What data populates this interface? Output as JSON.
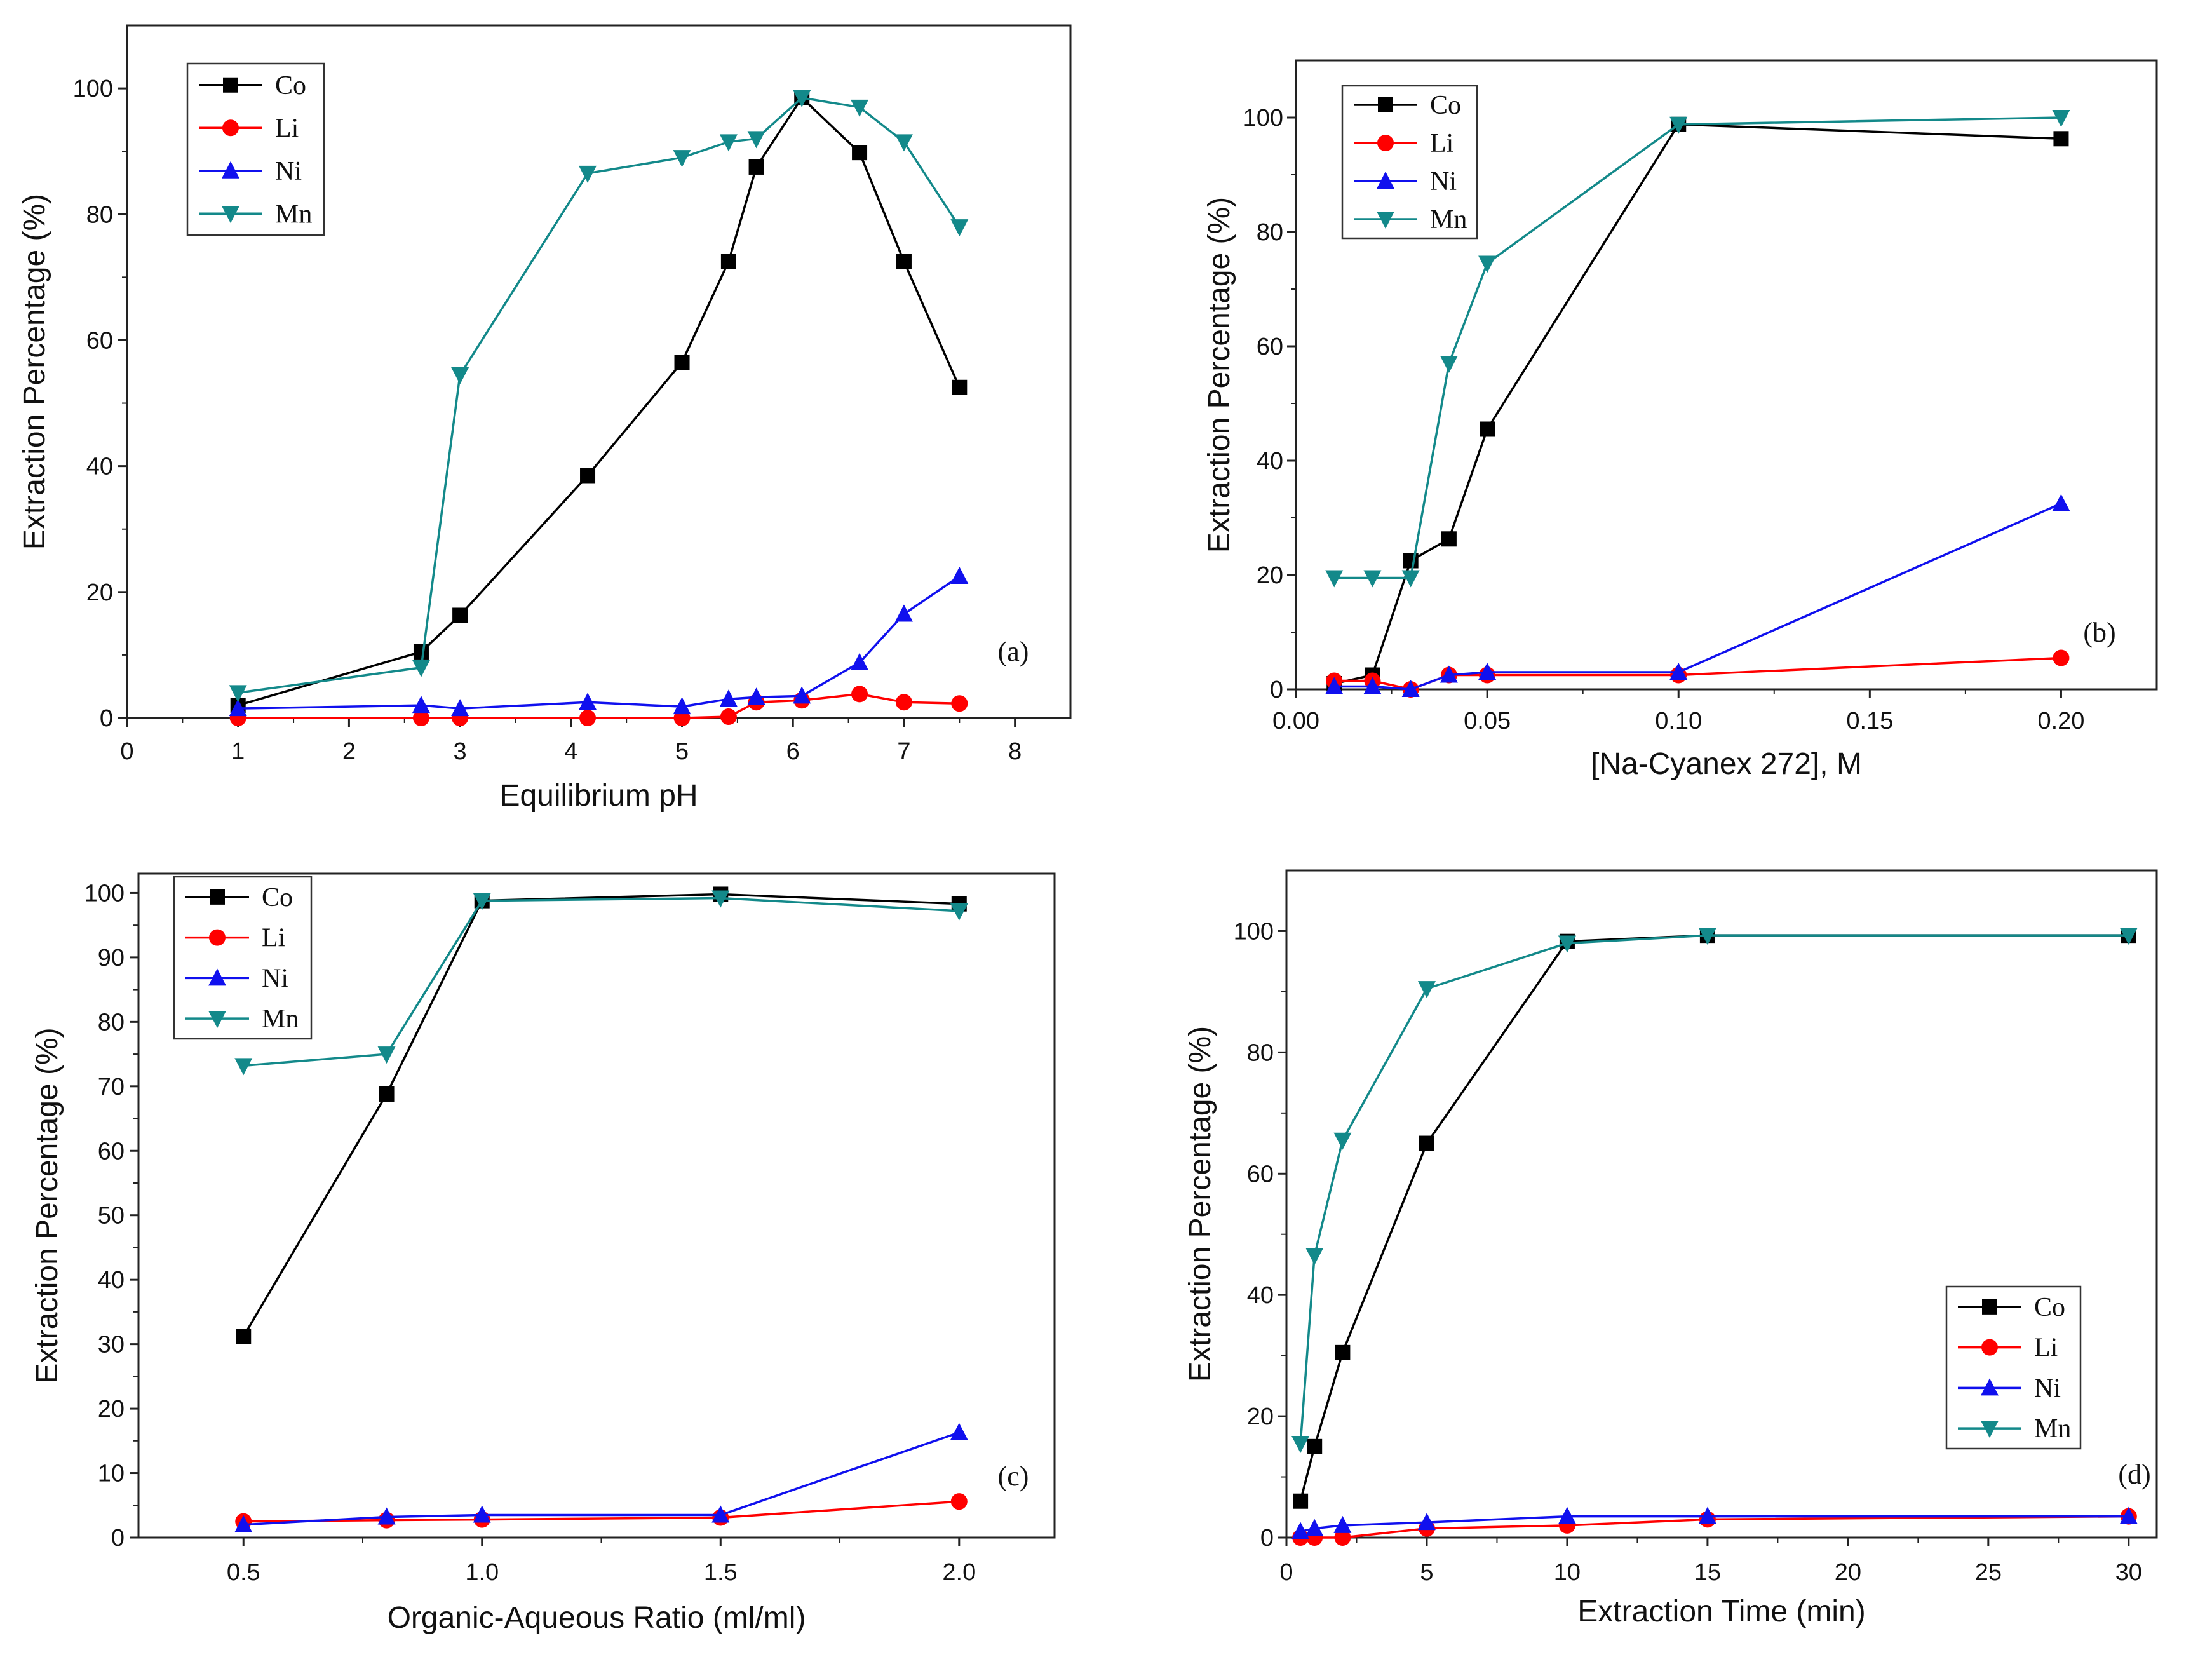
{
  "chart_data": [
    {
      "type": "line",
      "panel_label": "(a)",
      "xlabel": "Equilibrium pH",
      "ylabel": "Extraction Percentage (%)",
      "xlim": [
        0,
        8.5
      ],
      "ylim": [
        0,
        110
      ],
      "xticks": [
        0,
        1,
        2,
        3,
        4,
        5,
        6,
        7,
        8
      ],
      "yticks": [
        0,
        20,
        40,
        60,
        80,
        100
      ],
      "xtick_labels": [
        "0",
        "1",
        "2",
        "3",
        "4",
        "5",
        "6",
        "7",
        "8"
      ],
      "ytick_labels": [
        "0",
        "20",
        "40",
        "60",
        "80",
        "100"
      ],
      "legend_position": "top-left",
      "series": [
        {
          "name": "Co",
          "x": [
            1,
            2.65,
            3,
            4.15,
            5,
            5.42,
            5.67,
            6.08,
            6.6,
            7,
            7.5
          ],
          "y": [
            2,
            10.5,
            16.3,
            38.5,
            56.5,
            72.5,
            87.5,
            98.5,
            89.8,
            72.5,
            52.5
          ]
        },
        {
          "name": "Li",
          "x": [
            1,
            2.65,
            3,
            4.15,
            5,
            5.42,
            5.67,
            6.08,
            6.6,
            7,
            7.5
          ],
          "y": [
            0,
            0,
            0,
            0,
            0,
            0.2,
            2.5,
            2.8,
            3.8,
            2.5,
            2.3
          ]
        },
        {
          "name": "Ni",
          "x": [
            1,
            2.65,
            3,
            4.15,
            5,
            5.42,
            5.67,
            6.08,
            6.6,
            7,
            7.5
          ],
          "y": [
            1.5,
            2,
            1.5,
            2.5,
            1.8,
            3,
            3.3,
            3.5,
            8.8,
            16.5,
            22.5
          ]
        },
        {
          "name": "Mn",
          "x": [
            1,
            2.65,
            3,
            4.15,
            5,
            5.42,
            5.67,
            6.08,
            6.6,
            7,
            7.5
          ],
          "y": [
            4,
            8,
            54.5,
            86.5,
            89,
            91.5,
            92,
            98.5,
            97,
            91.5,
            78
          ]
        }
      ]
    },
    {
      "type": "line",
      "panel_label": "(b)",
      "xlabel": "[Na-Cyanex 272], M",
      "ylabel": "Extraction Percentage (%)",
      "xlim": [
        0,
        0.225
      ],
      "ylim": [
        0,
        110
      ],
      "xticks": [
        0,
        0.05,
        0.1,
        0.15,
        0.2
      ],
      "yticks": [
        0,
        20,
        40,
        60,
        80,
        100
      ],
      "xtick_labels": [
        "0.00",
        "0.05",
        "0.10",
        "0.15",
        "0.20"
      ],
      "ytick_labels": [
        "0",
        "20",
        "40",
        "60",
        "80",
        "100"
      ],
      "legend_position": "top-left",
      "series": [
        {
          "name": "Co",
          "x": [
            0.01,
            0.02,
            0.03,
            0.04,
            0.05,
            0.1,
            0.2
          ],
          "y": [
            1,
            2.5,
            22.5,
            26.3,
            45.5,
            98.8,
            96.3
          ]
        },
        {
          "name": "Li",
          "x": [
            0.01,
            0.02,
            0.03,
            0.04,
            0.05,
            0.1,
            0.2
          ],
          "y": [
            1.5,
            1.5,
            0,
            2.5,
            2.5,
            2.5,
            5.5
          ]
        },
        {
          "name": "Ni",
          "x": [
            0.01,
            0.02,
            0.03,
            0.04,
            0.05,
            0.1,
            0.2
          ],
          "y": [
            0.5,
            0.5,
            0,
            2.5,
            3,
            3,
            32.5
          ]
        },
        {
          "name": "Mn",
          "x": [
            0.01,
            0.02,
            0.03,
            0.04,
            0.05,
            0.1,
            0.2
          ],
          "y": [
            19.5,
            19.5,
            19.5,
            57,
            74.5,
            98.8,
            100
          ]
        }
      ]
    },
    {
      "type": "line",
      "panel_label": "(c)",
      "xlabel": "Organic-Aqueous Ratio (ml/ml)",
      "ylabel": "Extraction Percentage (%)",
      "xlim": [
        0.28,
        2.2
      ],
      "ylim": [
        0,
        103
      ],
      "xticks": [
        0.5,
        1.0,
        1.5,
        2.0
      ],
      "yticks": [
        0,
        10,
        20,
        30,
        40,
        50,
        60,
        70,
        80,
        90,
        100
      ],
      "xtick_labels": [
        "0.5",
        "1.0",
        "1.5",
        "2.0"
      ],
      "ytick_labels": [
        "0",
        "10",
        "20",
        "30",
        "40",
        "50",
        "60",
        "70",
        "80",
        "90",
        "100"
      ],
      "legend_position": "top-left",
      "series": [
        {
          "name": "Co",
          "x": [
            0.5,
            0.8,
            1.0,
            1.5,
            2.0
          ],
          "y": [
            31.2,
            68.8,
            98.8,
            99.8,
            98.3
          ]
        },
        {
          "name": "Li",
          "x": [
            0.5,
            0.8,
            1.0,
            1.5,
            2.0
          ],
          "y": [
            2.5,
            2.7,
            2.8,
            3.1,
            5.6
          ]
        },
        {
          "name": "Ni",
          "x": [
            0.5,
            0.8,
            1.0,
            1.5,
            2.0
          ],
          "y": [
            2,
            3.2,
            3.5,
            3.5,
            16.3
          ]
        },
        {
          "name": "Mn",
          "x": [
            0.5,
            0.8,
            1.0,
            1.5,
            2.0
          ],
          "y": [
            73.2,
            75,
            98.8,
            99.2,
            97.2
          ]
        }
      ]
    },
    {
      "type": "line",
      "panel_label": "(d)",
      "xlabel": "Extraction Time (min)",
      "ylabel": "Extraction Percentage (%)",
      "xlim": [
        0,
        31
      ],
      "ylim": [
        0,
        110
      ],
      "xticks": [
        0,
        5,
        10,
        15,
        20,
        25,
        30
      ],
      "yticks": [
        0,
        20,
        40,
        60,
        80,
        100
      ],
      "xtick_labels": [
        "0",
        "5",
        "10",
        "15",
        "20",
        "25",
        "30"
      ],
      "ytick_labels": [
        "0",
        "20",
        "40",
        "60",
        "80",
        "100"
      ],
      "legend_position": "bottom-right",
      "series": [
        {
          "name": "Co",
          "x": [
            0.5,
            1,
            2,
            5,
            10,
            15,
            30
          ],
          "y": [
            6,
            15,
            30.5,
            65,
            98.3,
            99.3,
            99.3
          ]
        },
        {
          "name": "Li",
          "x": [
            0.5,
            1,
            2,
            5,
            10,
            15,
            30
          ],
          "y": [
            0,
            0,
            0,
            1.5,
            2,
            3,
            3.5
          ]
        },
        {
          "name": "Ni",
          "x": [
            0.5,
            1,
            2,
            5,
            10,
            15,
            30
          ],
          "y": [
            1,
            1.5,
            2,
            2.5,
            3.5,
            3.5,
            3.5
          ]
        },
        {
          "name": "Mn",
          "x": [
            0.5,
            1,
            2,
            5,
            10,
            15,
            30
          ],
          "y": [
            15.5,
            46.5,
            65.5,
            90.5,
            98,
            99.3,
            99.3
          ]
        }
      ]
    }
  ],
  "colors": {
    "Co": "#000000",
    "Li": "#ff0000",
    "Ni": "#1010ee",
    "Mn": "#13898a",
    "frame": "#222222"
  },
  "markers": {
    "Co": "square",
    "Li": "circle",
    "Ni": "triangle-up",
    "Mn": "triangle-down"
  }
}
